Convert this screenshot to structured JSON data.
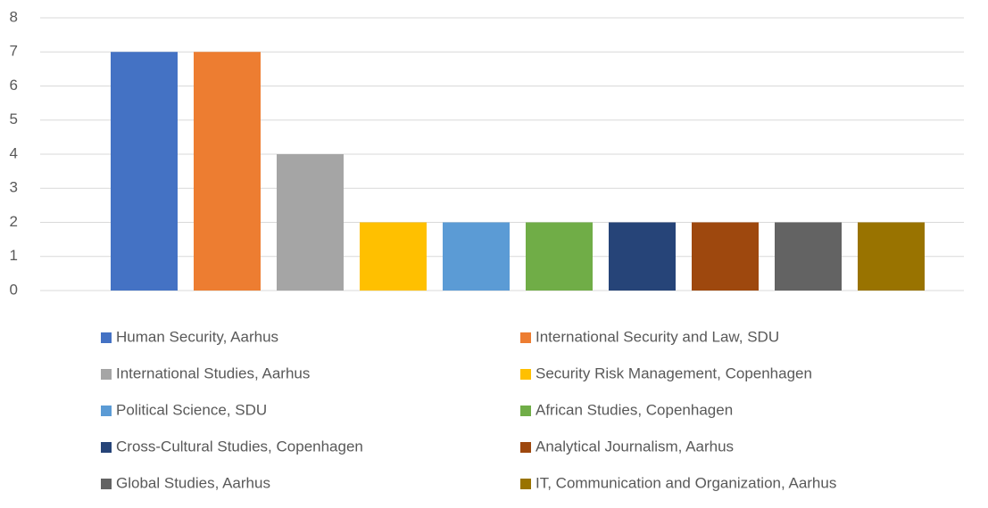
{
  "chart_data": {
    "type": "bar",
    "categories": [
      null
    ],
    "series": [
      {
        "name": "Human Security, Aarhus",
        "color": "#4472c4",
        "values": [
          7
        ]
      },
      {
        "name": "International Security and Law, SDU",
        "color": "#ed7d31",
        "values": [
          7
        ]
      },
      {
        "name": "International Studies, Aarhus",
        "color": "#a5a5a5",
        "values": [
          4
        ]
      },
      {
        "name": "Security Risk Management, Copenhagen",
        "color": "#ffc000",
        "values": [
          2
        ]
      },
      {
        "name": "Political Science, SDU",
        "color": "#5b9bd5",
        "values": [
          2
        ]
      },
      {
        "name": "African Studies, Copenhagen",
        "color": "#70ad47",
        "values": [
          2
        ]
      },
      {
        "name": "Cross-Cultural Studies, Copenhagen",
        "color": "#264478",
        "values": [
          2
        ]
      },
      {
        "name": "Analytical Journalism, Aarhus",
        "color": "#9e480e",
        "values": [
          2
        ]
      },
      {
        "name": "Global Studies, Aarhus",
        "color": "#636363",
        "values": [
          2
        ]
      },
      {
        "name": "IT, Communication and Organization, Aarhus",
        "color": "#997300",
        "values": [
          2
        ]
      }
    ],
    "ylim": [
      0,
      8
    ],
    "yticks": [
      0,
      1,
      2,
      3,
      4,
      5,
      6,
      7,
      8
    ],
    "grid": true,
    "legend": "bottom"
  }
}
